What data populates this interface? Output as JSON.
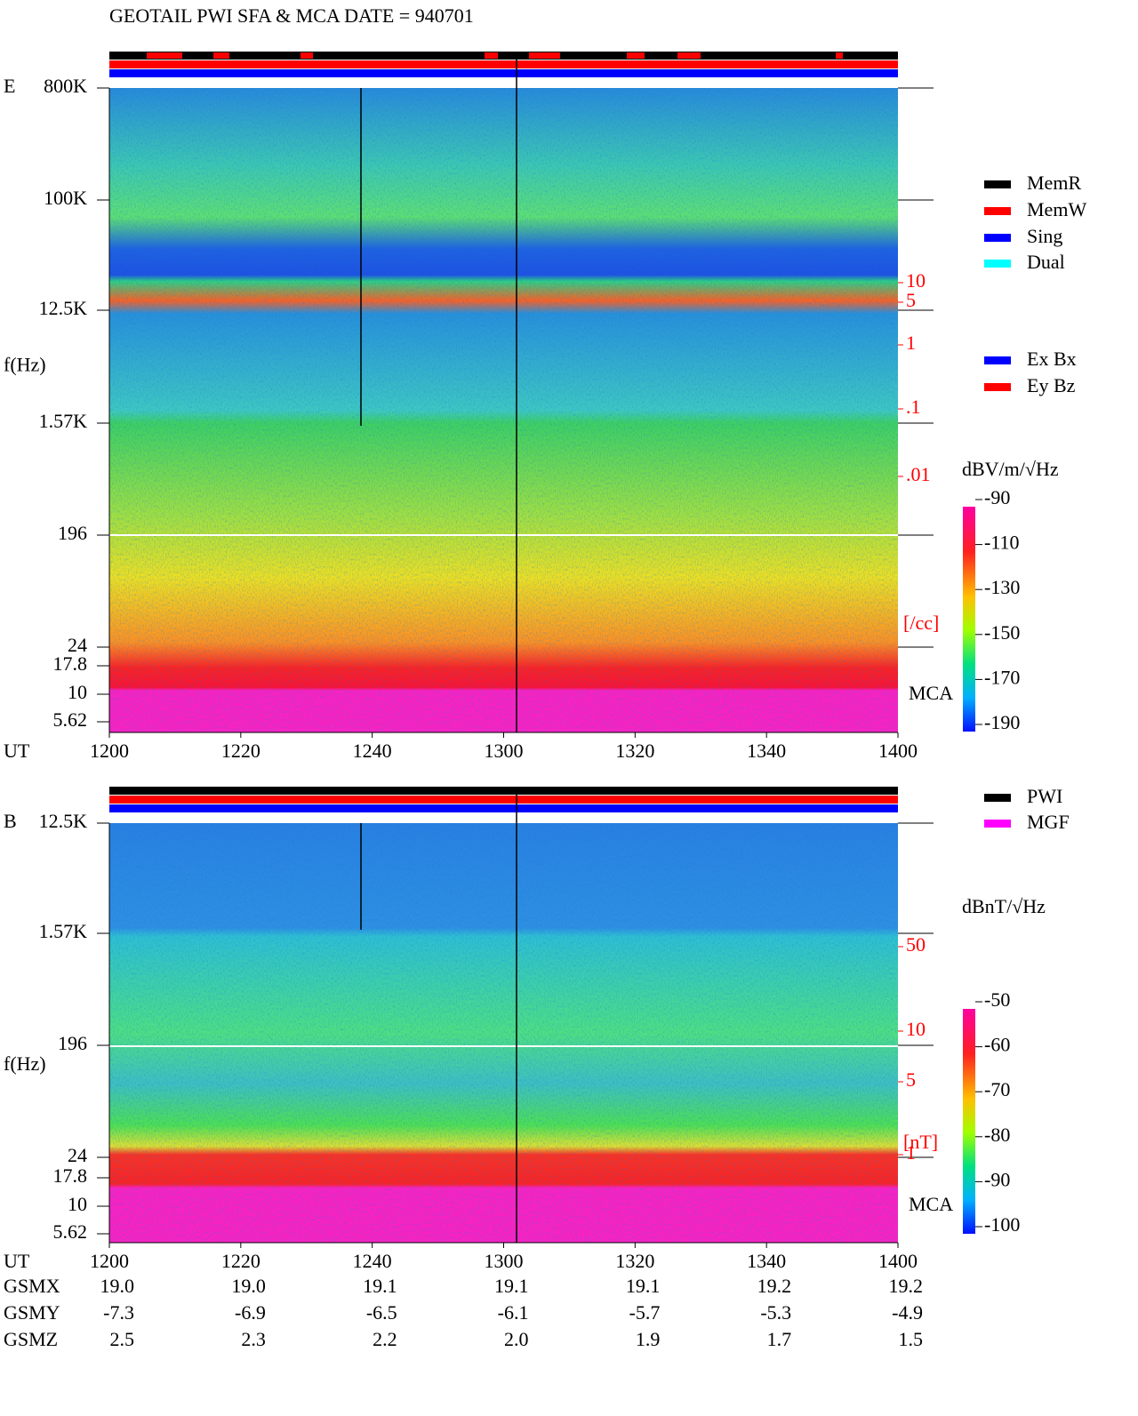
{
  "title": "GEOTAIL  PWI SFA & MCA   DATE = 940701",
  "panels": [
    {
      "label": "E",
      "ylabel": "f(Hz)",
      "yticks": [
        "800K",
        "100K",
        "12.5K",
        "1.57K",
        "196",
        "24",
        "17.8",
        "10",
        "5.62"
      ],
      "xlabel": "UT",
      "xticks": [
        "1200",
        "1220",
        "1240",
        "1300",
        "1320",
        "1340",
        "1400"
      ],
      "right_ticks": [
        "10",
        "5",
        "1",
        ".1",
        ".01"
      ],
      "right_unit": "[/cc]",
      "mca": "MCA",
      "colorbar_unit": "dBV/m/√Hz",
      "colorbar_ticks": [
        "-90",
        "-110",
        "-130",
        "-150",
        "-170",
        "-190"
      ]
    },
    {
      "label": "B",
      "ylabel": "f(Hz)",
      "yticks": [
        "12.5K",
        "1.57K",
        "196",
        "24",
        "17.8",
        "10",
        "5.62"
      ],
      "xlabel": "UT",
      "xticks": [
        "1200",
        "1220",
        "1240",
        "1300",
        "1320",
        "1340",
        "1400"
      ],
      "right_ticks": [
        "50",
        "10",
        "5",
        "1"
      ],
      "right_unit": "[nT]",
      "mca": "MCA",
      "colorbar_unit": "dBnT/√Hz",
      "colorbar_ticks": [
        "-50",
        "-60",
        "-70",
        "-80",
        "-90",
        "-100"
      ]
    }
  ],
  "legend_e": [
    {
      "name": "MemR",
      "color": "#000000"
    },
    {
      "name": "MemW",
      "color": "#ff0000"
    },
    {
      "name": "Sing",
      "color": "#0000ff"
    },
    {
      "name": "Dual",
      "color": "#00ffff"
    }
  ],
  "legend_antenna": [
    {
      "name": "Ex Bx",
      "color": "#0000ff"
    },
    {
      "name": "Ey Bz",
      "color": "#ff0000"
    }
  ],
  "legend_b": [
    {
      "name": "PWI",
      "color": "#000000"
    },
    {
      "name": "MGF",
      "color": "#ff00ff"
    }
  ],
  "ephemeris": [
    {
      "name": "GSMX",
      "values": [
        "19.0",
        "19.0",
        "19.1",
        "19.1",
        "19.1",
        "19.2",
        "19.2"
      ]
    },
    {
      "name": "GSMY",
      "values": [
        "-7.3",
        "-6.9",
        "-6.5",
        "-6.1",
        "-5.7",
        "-5.3",
        "-4.9"
      ]
    },
    {
      "name": "GSMZ",
      "values": [
        "2.5",
        "2.3",
        "2.2",
        "2.0",
        "1.9",
        "1.7",
        "1.5"
      ]
    }
  ]
}
